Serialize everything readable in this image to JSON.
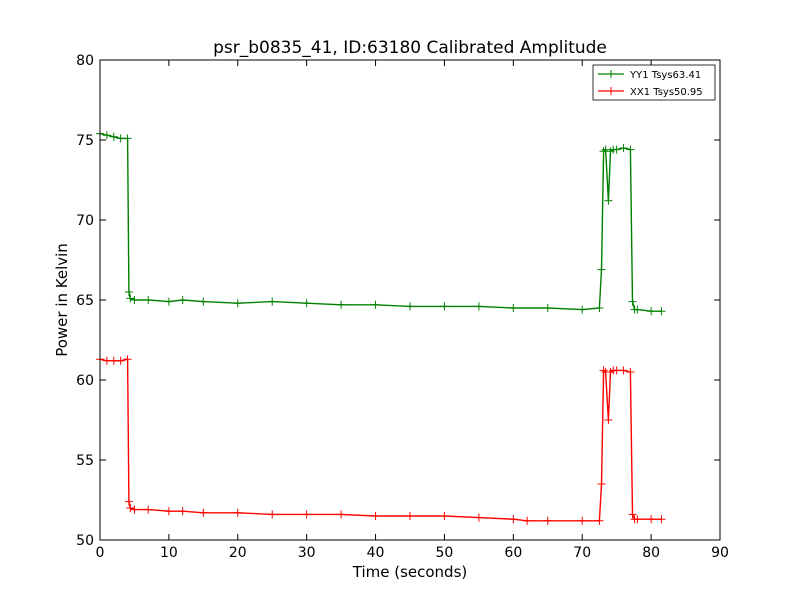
{
  "chart_data": {
    "type": "line",
    "title": "psr_b0835_41, ID:63180 Calibrated Amplitude",
    "xlabel": "Time (seconds)",
    "ylabel": "Power in Kelvin",
    "xlim": [
      0,
      90
    ],
    "ylim": [
      50,
      80
    ],
    "xticks": [
      "0",
      "10",
      "20",
      "30",
      "40",
      "50",
      "60",
      "70",
      "80",
      "90"
    ],
    "yticks": [
      "50",
      "55",
      "60",
      "65",
      "70",
      "75",
      "80"
    ],
    "grid": false,
    "legend_position": "top-right",
    "series": [
      {
        "name": "YY1 Tsys63.41",
        "color": "#008000",
        "x": [
          0,
          1,
          2,
          3,
          4.0,
          4.2,
          4.4,
          5,
          7,
          10,
          12,
          15,
          20,
          25,
          30,
          35,
          40,
          45,
          50,
          55,
          60,
          65,
          70,
          72.5,
          72.8,
          73.1,
          73.4,
          73.8,
          74.1,
          74.5,
          75,
          76,
          77.0,
          77.3,
          77.6,
          78,
          80,
          81.5
        ],
        "y": [
          75.4,
          75.3,
          75.2,
          75.1,
          75.1,
          65.5,
          65.1,
          65.0,
          65.0,
          64.9,
          65.0,
          64.9,
          64.8,
          64.9,
          64.8,
          64.7,
          64.7,
          64.6,
          64.6,
          64.6,
          64.5,
          64.5,
          64.4,
          64.5,
          66.9,
          74.3,
          74.4,
          71.2,
          74.3,
          74.4,
          74.4,
          74.5,
          74.4,
          64.9,
          64.4,
          64.4,
          64.3,
          64.3
        ]
      },
      {
        "name": "XX1 Tsys50.95",
        "color": "#ff0000",
        "x": [
          0,
          1,
          2,
          3,
          4.0,
          4.2,
          4.4,
          5,
          7,
          10,
          12,
          15,
          20,
          25,
          30,
          35,
          40,
          45,
          50,
          55,
          60,
          62,
          65,
          70,
          72.5,
          72.8,
          73.1,
          73.4,
          73.8,
          74.1,
          74.5,
          75,
          76,
          77.0,
          77.3,
          77.6,
          78,
          80,
          81.5
        ],
        "y": [
          61.3,
          61.2,
          61.2,
          61.2,
          61.3,
          52.4,
          52.0,
          51.9,
          51.9,
          51.8,
          51.8,
          51.7,
          51.7,
          51.6,
          51.6,
          51.6,
          51.5,
          51.5,
          51.5,
          51.4,
          51.3,
          51.2,
          51.2,
          51.2,
          51.2,
          53.5,
          60.6,
          60.5,
          57.5,
          60.5,
          60.6,
          60.6,
          60.6,
          60.5,
          51.6,
          51.3,
          51.3,
          51.3,
          51.3
        ]
      }
    ]
  }
}
